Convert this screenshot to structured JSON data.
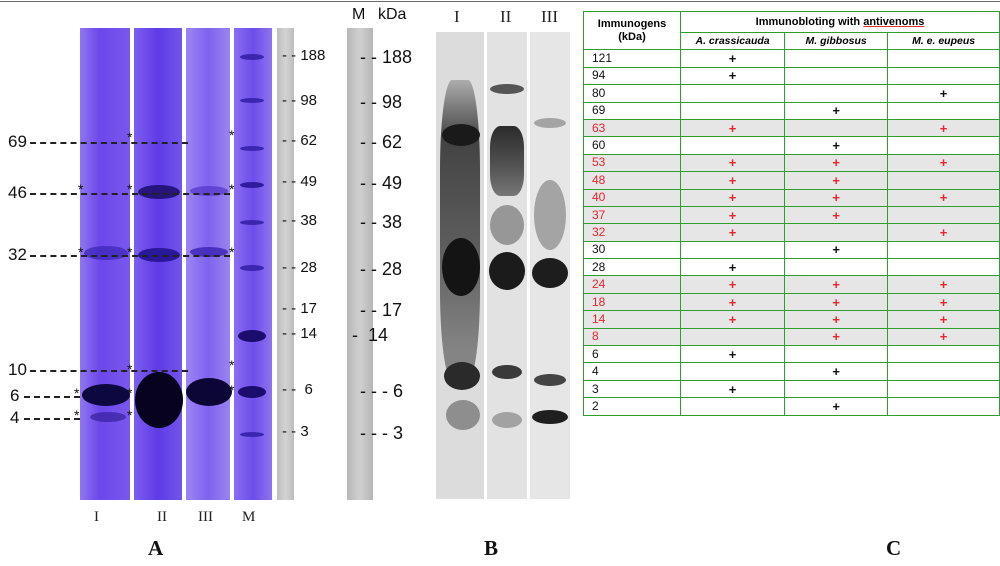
{
  "panels": {
    "a": "A",
    "b": "B",
    "c": "C"
  },
  "panel_a": {
    "lanes": [
      "I",
      "II",
      "III",
      "M"
    ],
    "left_markers": [
      "69",
      "46",
      "32",
      "10",
      "6",
      "4"
    ],
    "marker_kda": [
      "188",
      "98",
      "62",
      "49",
      "38",
      "28",
      "17",
      "14",
      "6",
      "3"
    ],
    "ladder_header_m": "M",
    "ladder_header_kda": "kDa",
    "ladder_kda": [
      "188",
      "98",
      "62",
      "49",
      "38",
      "28",
      "17",
      "14",
      "6",
      "3"
    ],
    "colors": {
      "gel": "#6a45e8",
      "band": "#140a4a"
    }
  },
  "panel_b": {
    "lanes": [
      "I",
      "II",
      "III"
    ]
  },
  "panel_c": {
    "header": {
      "immunogens": "Immunogens",
      "kda": "(kDa)",
      "group_title_prefix": "Immunobloting with ",
      "group_title_word": "antivenoms",
      "species": [
        "A. crassicauda",
        "M. gibbosus",
        "M. e. eupeus"
      ]
    },
    "mark": "+",
    "rows": [
      {
        "kda": "121",
        "a": "+",
        "g": "",
        "e": "",
        "common": false
      },
      {
        "kda": "94",
        "a": "+",
        "g": "",
        "e": "",
        "common": false
      },
      {
        "kda": "80",
        "a": "",
        "g": "",
        "e": "+",
        "common": false
      },
      {
        "kda": "69",
        "a": "",
        "g": "+",
        "e": "",
        "common": false
      },
      {
        "kda": "63",
        "a": "+",
        "g": "",
        "e": "+",
        "common": true
      },
      {
        "kda": "60",
        "a": "",
        "g": "+",
        "e": "",
        "common": false
      },
      {
        "kda": "53",
        "a": "+",
        "g": "+",
        "e": "+",
        "common": true
      },
      {
        "kda": "48",
        "a": "+",
        "g": "+",
        "e": "",
        "common": true
      },
      {
        "kda": "40",
        "a": "+",
        "g": "+",
        "e": "+",
        "common": true
      },
      {
        "kda": "37",
        "a": "+",
        "g": "+",
        "e": "",
        "common": true
      },
      {
        "kda": "32",
        "a": "+",
        "g": "",
        "e": "+",
        "common": true
      },
      {
        "kda": "30",
        "a": "",
        "g": "+",
        "e": "",
        "common": false
      },
      {
        "kda": "28",
        "a": "+",
        "g": "",
        "e": "",
        "common": false
      },
      {
        "kda": "24",
        "a": "+",
        "g": "+",
        "e": "+",
        "common": true
      },
      {
        "kda": "18",
        "a": "+",
        "g": "+",
        "e": "+",
        "common": true
      },
      {
        "kda": "14",
        "a": "+",
        "g": "+",
        "e": "+",
        "common": true
      },
      {
        "kda": "8",
        "a": "",
        "g": "+",
        "e": "+",
        "common": true
      },
      {
        "kda": "6",
        "a": "+",
        "g": "",
        "e": "",
        "common": false
      },
      {
        "kda": "4",
        "a": "",
        "g": "+",
        "e": "",
        "common": false
      },
      {
        "kda": "3",
        "a": "+",
        "g": "",
        "e": "",
        "common": false
      },
      {
        "kda": "2",
        "a": "",
        "g": "+",
        "e": "",
        "common": false
      }
    ]
  }
}
